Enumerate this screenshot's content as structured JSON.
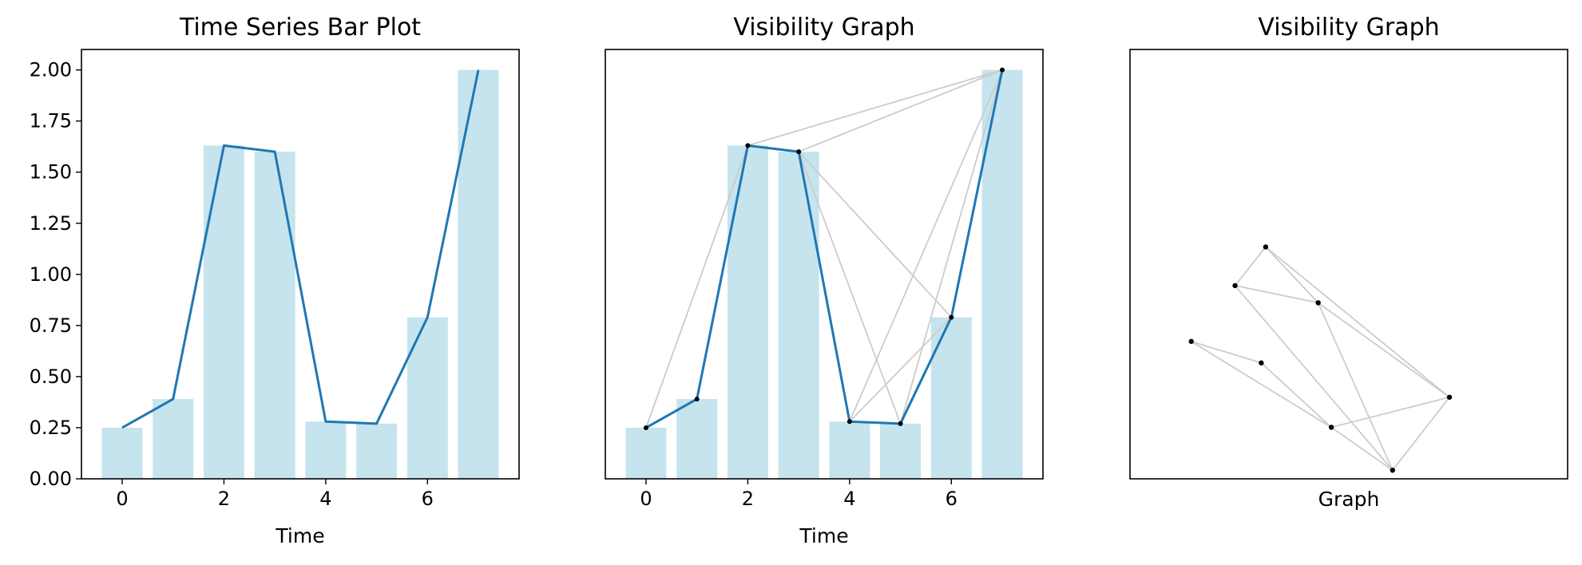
{
  "chart_data": [
    {
      "type": "bar",
      "title": "Time Series Bar Plot",
      "xlabel": "Time",
      "ylabel": "",
      "x": [
        0,
        1,
        2,
        3,
        4,
        5,
        6,
        7
      ],
      "values": [
        0.25,
        0.39,
        1.63,
        1.6,
        0.28,
        0.27,
        0.79,
        2.0
      ],
      "overlay_line": true,
      "xlim": [
        -0.8,
        7.8
      ],
      "ylim": [
        0,
        2.1
      ],
      "xticks": [
        0,
        2,
        4,
        6
      ],
      "yticks": [
        0.0,
        0.25,
        0.5,
        0.75,
        1.0,
        1.25,
        1.5,
        1.75,
        2.0
      ],
      "ytick_labels": [
        "0.00",
        "0.25",
        "0.50",
        "0.75",
        "1.00",
        "1.25",
        "1.50",
        "1.75",
        "2.00"
      ],
      "bar_color": "#add8e6",
      "line_color": "#1f77b4",
      "grid": false
    },
    {
      "type": "bar",
      "title": "Visibility Graph",
      "xlabel": "Time",
      "ylabel": "",
      "x": [
        0,
        1,
        2,
        3,
        4,
        5,
        6,
        7
      ],
      "values": [
        0.25,
        0.39,
        1.63,
        1.6,
        0.28,
        0.27,
        0.79,
        2.0
      ],
      "overlay_line": true,
      "visibility_edges": [
        [
          0,
          2
        ],
        [
          2,
          7
        ],
        [
          3,
          7
        ],
        [
          3,
          5
        ],
        [
          3,
          6
        ],
        [
          4,
          6
        ],
        [
          4,
          7
        ],
        [
          5,
          7
        ]
      ],
      "xlim": [
        -0.8,
        7.8
      ],
      "ylim": [
        0,
        2.1
      ],
      "xticks": [
        0,
        2,
        4,
        6
      ],
      "yticks_visible": false,
      "bar_color": "#add8e6",
      "line_color": "#1f77b4",
      "edge_color": "#cccccc",
      "grid": false
    },
    {
      "type": "network",
      "title": "Visibility Graph",
      "xlabel": "Graph",
      "nodes": [
        {
          "id": 0,
          "x": 0.7,
          "y": 1.6
        },
        {
          "id": 1,
          "x": 1.5,
          "y": 1.35
        },
        {
          "id": 2,
          "x": 2.3,
          "y": 0.6
        },
        {
          "id": 3,
          "x": 3.65,
          "y": 0.95
        },
        {
          "id": 4,
          "x": 1.2,
          "y": 2.25
        },
        {
          "id": 5,
          "x": 2.15,
          "y": 2.05
        },
        {
          "id": 6,
          "x": 1.55,
          "y": 2.7
        },
        {
          "id": 7,
          "x": 3.0,
          "y": 0.1
        }
      ],
      "edges": [
        [
          0,
          1
        ],
        [
          0,
          2
        ],
        [
          1,
          2
        ],
        [
          2,
          3
        ],
        [
          2,
          7
        ],
        [
          3,
          7
        ],
        [
          3,
          5
        ],
        [
          3,
          6
        ],
        [
          4,
          5
        ],
        [
          4,
          6
        ],
        [
          4,
          7
        ],
        [
          5,
          7
        ],
        [
          5,
          6
        ]
      ],
      "xlim": [
        0,
        5
      ],
      "ylim": [
        0,
        5
      ],
      "node_color": "#000000",
      "edge_color": "#cccccc"
    }
  ]
}
